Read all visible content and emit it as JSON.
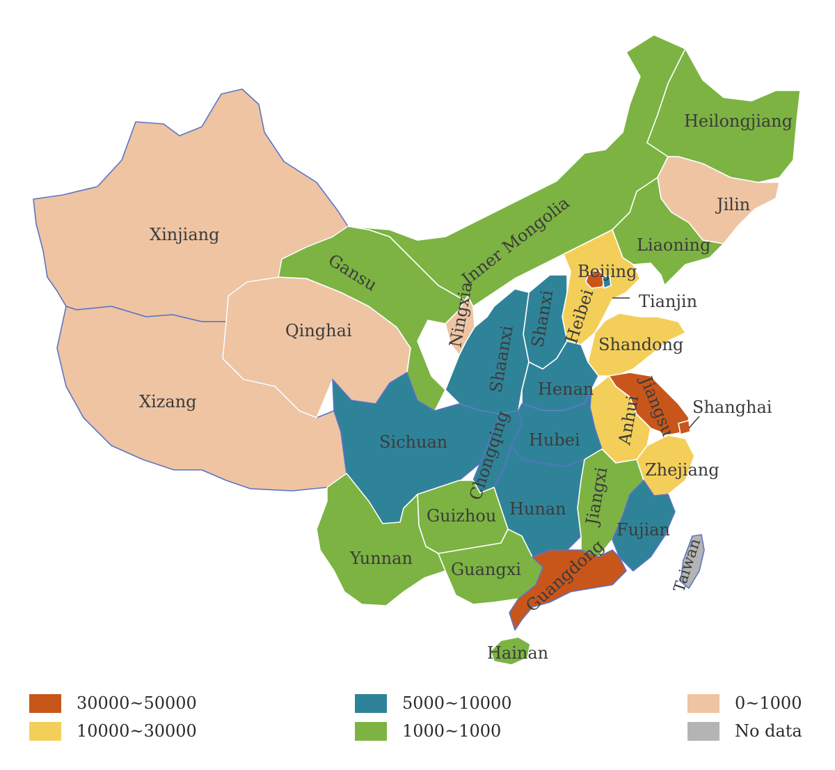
{
  "colors": {
    "orange": "#c8561b",
    "yellow": "#f3cf5a",
    "teal": "#2f8399",
    "green": "#7cb342",
    "peach": "#eec4a3",
    "gray": "#b4b4b4",
    "border_blue": "#5a74c4",
    "border_white": "#ffffff"
  },
  "provinces": {
    "xinjiang": "Xinjiang",
    "xizang": "Xizang",
    "qinghai": "Qinghai",
    "gansu": "Gansu",
    "inner_mongolia": "Inner Mongolia",
    "heilongjiang": "Heilongjiang",
    "jilin": "Jilin",
    "liaoning": "Liaoning",
    "beijing": "Beijing",
    "tianjin": "Tianjin",
    "hebei": "Heibei",
    "shandong": "Shandong",
    "ningxia": "Ningxia",
    "shanxi": "Shanxi",
    "shaanxi": "Shaanxi",
    "henan": "Henan",
    "jiangsu": "Jiangsu",
    "shanghai": "Shanghai",
    "anhui": "Anhui",
    "sichuan": "Sichuan",
    "chongqing": "Chongqing",
    "hubei": "Hubei",
    "zhejiang": "Zhejiang",
    "guizhou": "Guizhou",
    "hunan": "Hunan",
    "jiangxi": "Jiangxi",
    "fujian": "Fujian",
    "yunnan": "Yunnan",
    "guangxi": "Guangxi",
    "guangdong": "Guangdong",
    "taiwan": "Taiwan",
    "hainan": "Hainan"
  },
  "legend": [
    {
      "label": "30000~50000",
      "color": "orange"
    },
    {
      "label": "10000~30000",
      "color": "yellow"
    },
    {
      "label": "5000~10000",
      "color": "teal"
    },
    {
      "label": "1000~1000",
      "color": "green"
    },
    {
      "label": "0~1000",
      "color": "peach"
    },
    {
      "label": "No data",
      "color": "gray"
    }
  ]
}
